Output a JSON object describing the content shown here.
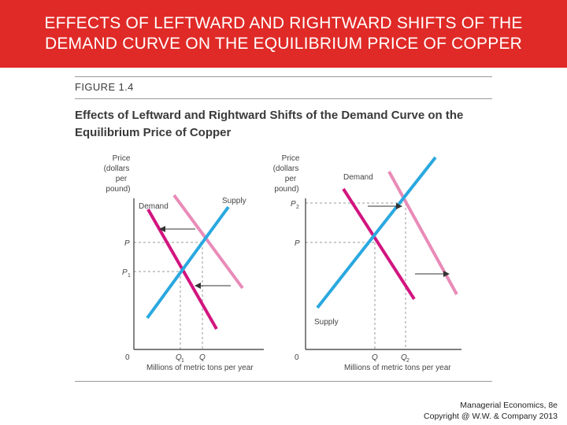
{
  "slide": {
    "title_line1": "EFFECTS OF LEFTWARD AND RIGHTWARD SHIFTS OF THE",
    "title_line2": "DEMAND CURVE ON THE EQUILIBRIUM PRICE OF COPPER",
    "figure_label": "FIGURE 1.4",
    "figure_caption": "Effects of Leftward and Rightward Shifts of the Demand Curve on the Equilibrium Price of Copper",
    "footer_line1": "Managerial Economics, 8e",
    "footer_line2": "Copyright @ W.W. & Company 2013"
  },
  "colors": {
    "banner": "#e02a27",
    "supply": "#2aa8e0",
    "demand_new": "#d2157f",
    "demand_old": "#e98bb8",
    "axis": "#333333",
    "guide": "#9a9a9a"
  },
  "left_panel": {
    "ylabel_1": "Price",
    "ylabel_2": "(dollars",
    "ylabel_3": "per",
    "ylabel_4": "pound)",
    "price_p": "P",
    "price_p1": "P",
    "price_p1_sub": "1",
    "origin": "0",
    "qty_q1": "Q",
    "qty_q1_sub": "1",
    "qty_q": "Q",
    "xlabel": "Millions of metric tons per year",
    "demand_label": "Demand",
    "supply_label": "Supply"
  },
  "right_panel": {
    "ylabel_1": "Price",
    "ylabel_2": "(dollars",
    "ylabel_3": "per",
    "ylabel_4": "pound)",
    "price_p2": "P",
    "price_p2_sub": "2",
    "price_p": "P",
    "origin": "0",
    "qty_q": "Q",
    "qty_q2": "Q",
    "qty_q2_sub": "2",
    "xlabel": "Millions of metric tons per year",
    "demand_label": "Demand",
    "supply_label": "Supply"
  }
}
